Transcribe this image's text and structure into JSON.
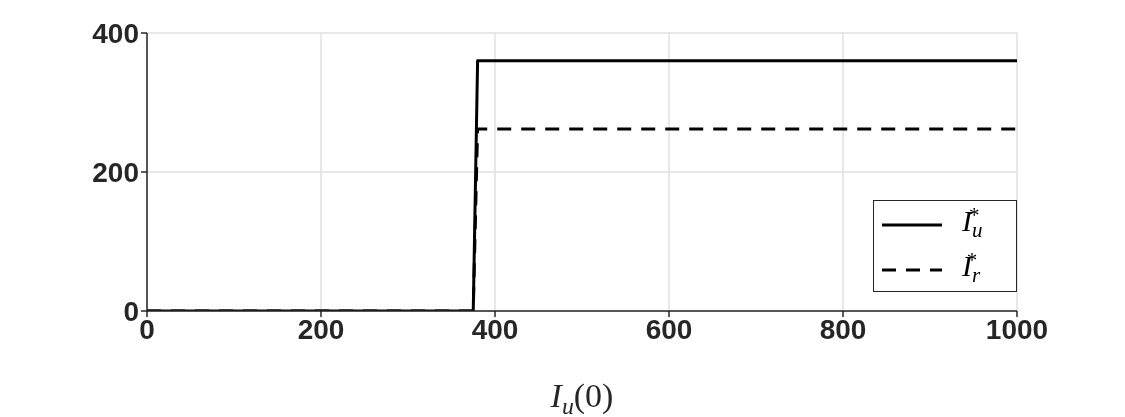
{
  "chart_data": {
    "type": "line",
    "xlabel": "I$_{u}$(0)",
    "x": [
      0,
      375,
      380,
      1000
    ],
    "series": [
      {
        "name": "I$_{u}$$^{*}$",
        "color": "#000000",
        "line_style": "solid",
        "values": [
          0,
          0,
          360,
          360
        ]
      },
      {
        "name": "I$_{r}$$^{*}$",
        "color": "#000000",
        "line_style": "dashed",
        "values": [
          0,
          0,
          262,
          262
        ]
      }
    ],
    "xlim": [
      0,
      1000
    ],
    "xticks": [
      0,
      200,
      400,
      600,
      800,
      1000
    ],
    "ylim": [
      0,
      400
    ],
    "yticks": [
      0,
      200,
      400
    ],
    "grid": true,
    "legend": "bottom right",
    "marker": "none"
  }
}
